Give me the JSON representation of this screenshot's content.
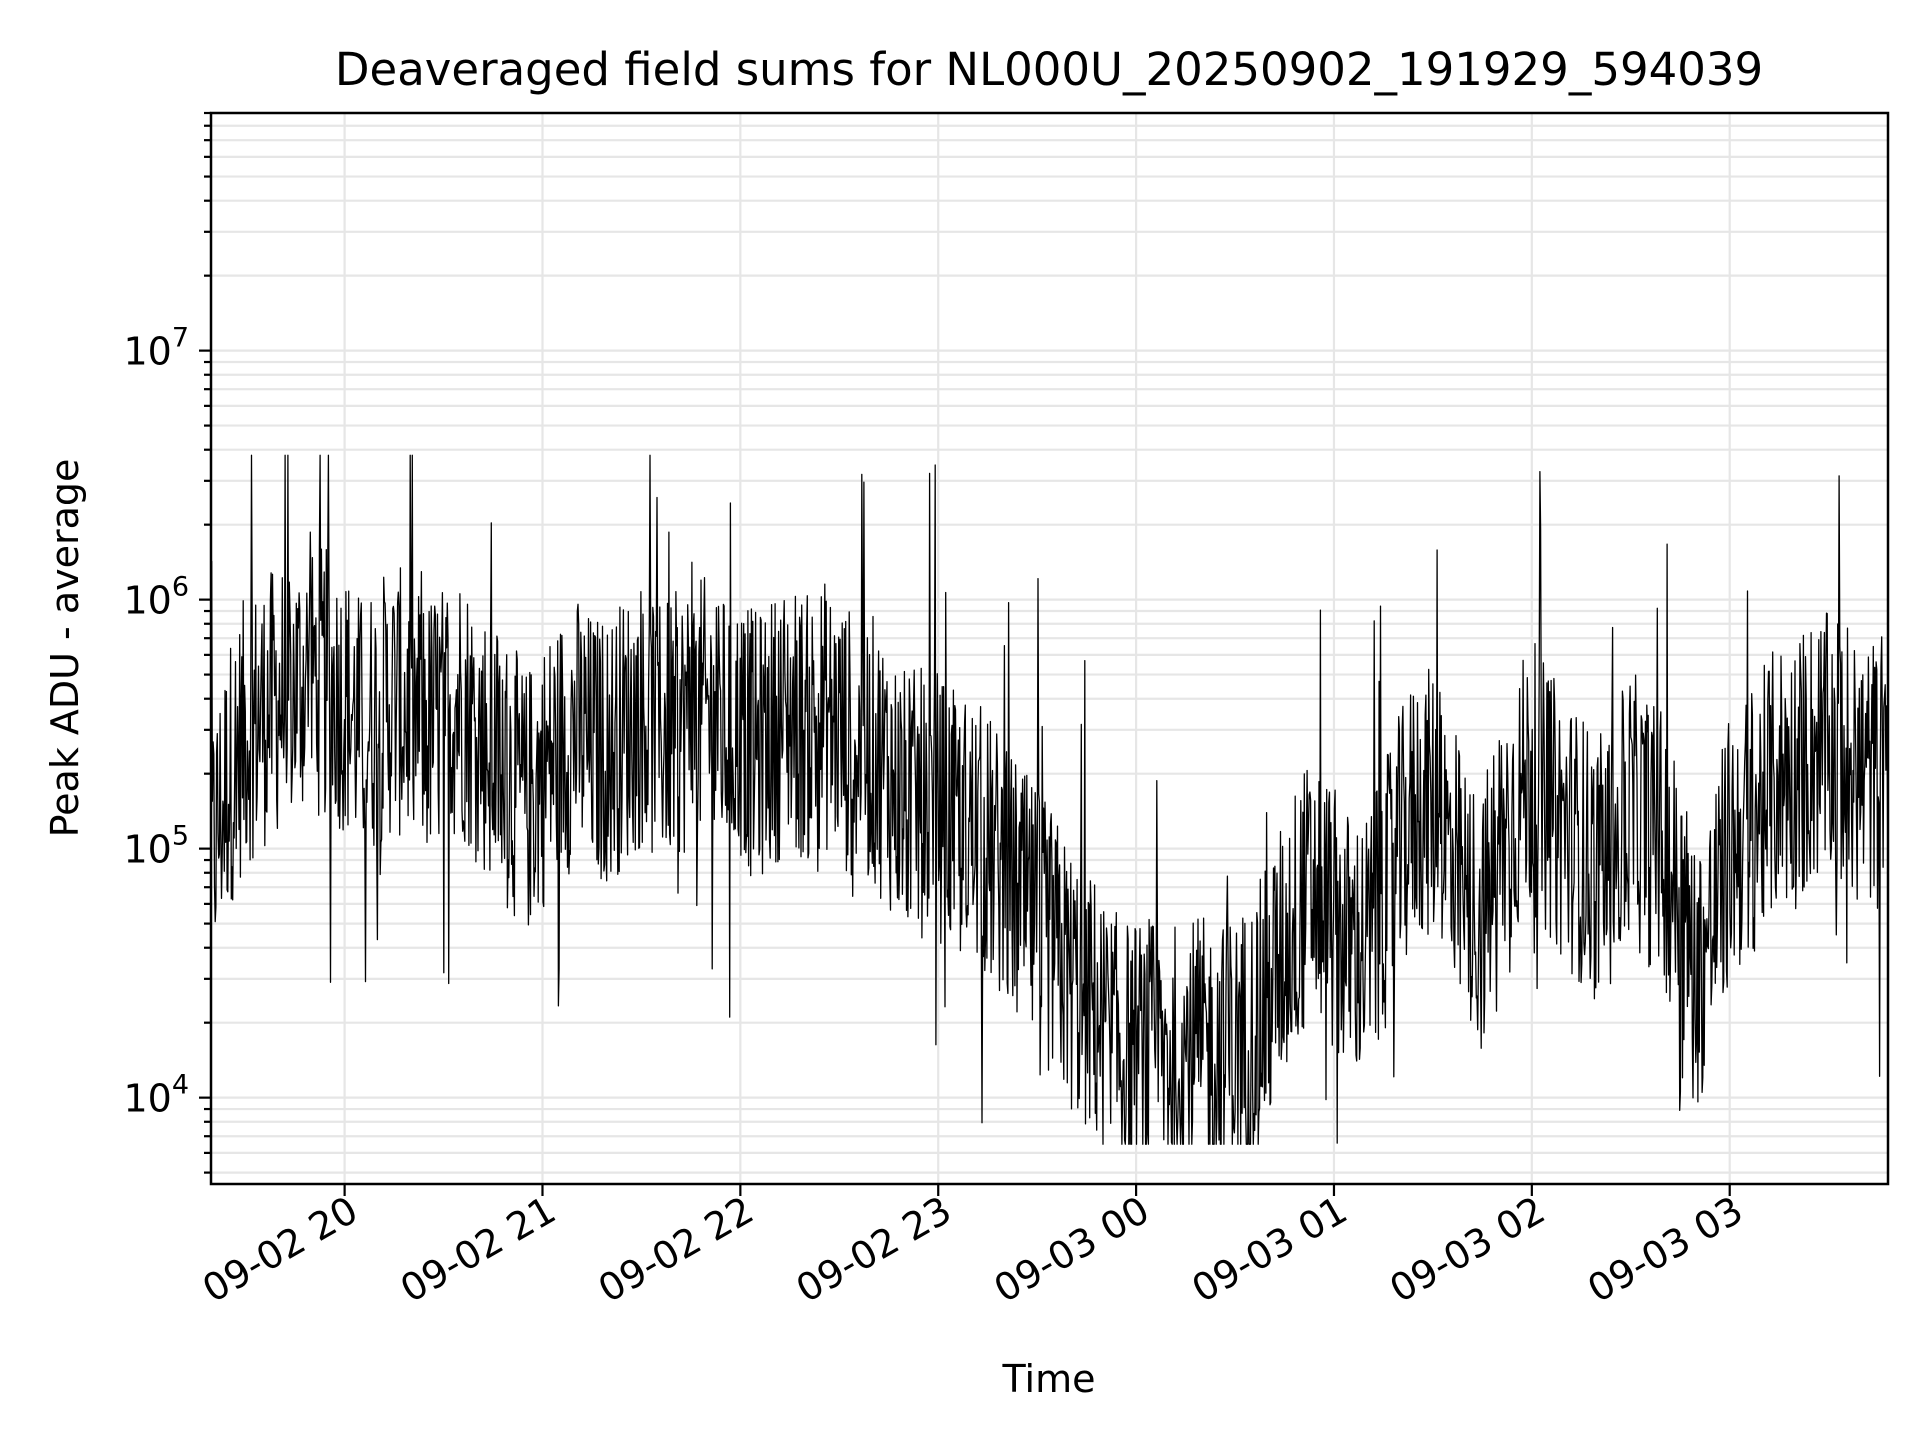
{
  "chart_data": {
    "type": "line",
    "title": "Deaveraged field sums for NL000U_20250902_191929_594039",
    "xlabel": "Time",
    "ylabel": "Peak ADU - average",
    "yscale": "log",
    "ylim": [
      4500,
      90000000
    ],
    "xlim": [
      "2025-09-02 19:19:29",
      "2025-09-03 03:48:00"
    ],
    "grid": "on (major and minor)",
    "legend": "none",
    "colors": {
      "series": "#000000",
      "grid": "#e6e6e6",
      "spine": "#000000"
    },
    "x_ticks": [
      {
        "t": "2025-09-02 20:00",
        "label": "09-02 20"
      },
      {
        "t": "2025-09-02 21:00",
        "label": "09-02 21"
      },
      {
        "t": "2025-09-02 22:00",
        "label": "09-02 22"
      },
      {
        "t": "2025-09-02 23:00",
        "label": "09-02 23"
      },
      {
        "t": "2025-09-03 00:00",
        "label": "09-03 00"
      },
      {
        "t": "2025-09-03 01:00",
        "label": "09-03 01"
      },
      {
        "t": "2025-09-03 02:00",
        "label": "09-03 02"
      },
      {
        "t": "2025-09-03 03:00",
        "label": "09-03 03"
      }
    ],
    "y_ticks": [
      {
        "value": 10000,
        "base": "10",
        "exp": "4"
      },
      {
        "value": 100000,
        "base": "10",
        "exp": "5"
      },
      {
        "value": 1000000,
        "base": "10",
        "exp": "6"
      },
      {
        "value": 10000000,
        "base": "10",
        "exp": "7"
      }
    ],
    "series": [
      {
        "x": [
          "2025-09-02 19:20",
          "2025-09-02 19:25",
          "2025-09-02 19:30",
          "2025-09-02 19:35",
          "2025-09-02 19:40",
          "2025-09-02 19:45",
          "2025-09-02 19:50",
          "2025-09-02 19:55",
          "2025-09-02 20:00",
          "2025-09-02 20:05",
          "2025-09-02 20:10",
          "2025-09-02 20:15",
          "2025-09-02 20:20",
          "2025-09-02 20:25",
          "2025-09-02 20:30",
          "2025-09-02 20:35",
          "2025-09-02 20:40",
          "2025-09-02 20:45",
          "2025-09-02 20:50",
          "2025-09-02 20:55",
          "2025-09-02 21:00",
          "2025-09-02 21:05",
          "2025-09-02 21:10",
          "2025-09-02 21:15",
          "2025-09-02 21:20",
          "2025-09-02 21:25",
          "2025-09-02 21:30",
          "2025-09-02 21:35",
          "2025-09-02 21:40",
          "2025-09-02 21:45",
          "2025-09-02 21:50",
          "2025-09-02 21:55",
          "2025-09-02 22:00",
          "2025-09-02 22:05",
          "2025-09-02 22:10",
          "2025-09-02 22:15",
          "2025-09-02 22:20",
          "2025-09-02 22:25",
          "2025-09-02 22:30",
          "2025-09-02 22:35",
          "2025-09-02 22:40",
          "2025-09-02 22:45",
          "2025-09-02 22:50",
          "2025-09-02 22:55",
          "2025-09-02 23:00",
          "2025-09-02 23:05",
          "2025-09-02 23:10",
          "2025-09-02 23:15",
          "2025-09-02 23:20",
          "2025-09-02 23:25",
          "2025-09-02 23:30",
          "2025-09-02 23:35",
          "2025-09-02 23:40",
          "2025-09-02 23:45",
          "2025-09-02 23:50",
          "2025-09-02 23:55",
          "2025-09-03 00:00",
          "2025-09-03 00:05",
          "2025-09-03 00:10",
          "2025-09-03 00:15",
          "2025-09-03 00:20",
          "2025-09-03 00:25",
          "2025-09-03 00:30",
          "2025-09-03 00:35",
          "2025-09-03 00:40",
          "2025-09-03 00:45",
          "2025-09-03 00:50",
          "2025-09-03 00:55",
          "2025-09-03 01:00",
          "2025-09-03 01:05",
          "2025-09-03 01:10",
          "2025-09-03 01:15",
          "2025-09-03 01:20",
          "2025-09-03 01:25",
          "2025-09-03 01:30",
          "2025-09-03 01:35",
          "2025-09-03 01:40",
          "2025-09-03 01:45",
          "2025-09-03 01:50",
          "2025-09-03 01:55",
          "2025-09-03 02:00",
          "2025-09-03 02:05",
          "2025-09-03 02:10",
          "2025-09-03 02:15",
          "2025-09-03 02:20",
          "2025-09-03 02:25",
          "2025-09-03 02:30",
          "2025-09-03 02:35",
          "2025-09-03 02:40",
          "2025-09-03 02:45",
          "2025-09-03 02:50",
          "2025-09-03 02:55",
          "2025-09-03 03:00",
          "2025-09-03 03:05",
          "2025-09-03 03:10",
          "2025-09-03 03:15",
          "2025-09-03 03:20",
          "2025-09-03 03:25",
          "2025-09-03 03:30",
          "2025-09-03 03:35",
          "2025-09-03 03:40",
          "2025-09-03 03:45"
        ],
        "y": [
          100000,
          200000,
          300000,
          350000,
          400000,
          450000,
          500000,
          450000,
          400000,
          300000,
          350000,
          400000,
          350000,
          300000,
          350000,
          400000,
          300000,
          250000,
          200000,
          150000,
          200000,
          250000,
          300000,
          250000,
          250000,
          300000,
          350000,
          300000,
          300000,
          350000,
          350000,
          300000,
          300000,
          250000,
          300000,
          350000,
          300000,
          350000,
          300000,
          250000,
          250000,
          200000,
          150000,
          150000,
          150000,
          120000,
          120000,
          100000,
          80000,
          60000,
          50000,
          40000,
          30000,
          25000,
          20000,
          15000,
          15000,
          15000,
          14000,
          15000,
          15000,
          15000,
          16000,
          18000,
          25000,
          40000,
          60000,
          70000,
          50000,
          40000,
          40000,
          60000,
          100000,
          150000,
          150000,
          100000,
          60000,
          50000,
          100000,
          150000,
          200000,
          150000,
          120000,
          100000,
          80000,
          100000,
          150000,
          120000,
          100000,
          60000,
          30000,
          50000,
          100000,
          120000,
          150000,
          200000,
          200000,
          250000,
          250000,
          250000,
          200000,
          200000
        ]
      }
    ]
  }
}
